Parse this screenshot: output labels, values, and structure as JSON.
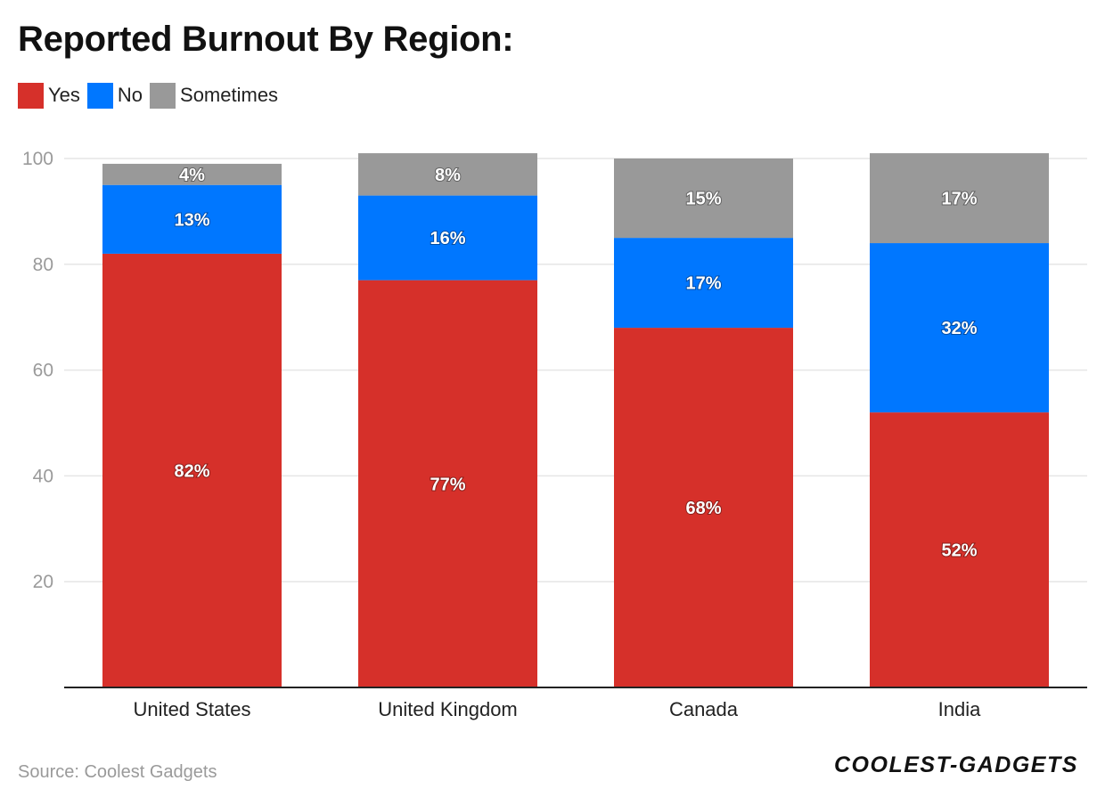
{
  "page": {
    "source": "Source: Coolest Gadgets",
    "brand": "COOLEST-GADGETS"
  },
  "colors": {
    "yes": "#d6302a",
    "no": "#0077ff",
    "sometimes": "#999999",
    "grid": "#e6e6e6",
    "axis": "#222222"
  },
  "chart_data": {
    "type": "bar",
    "stacked": true,
    "title": "Reported Burnout By Region:",
    "categories": [
      "United States",
      "United Kingdom",
      "Canada",
      "India"
    ],
    "series": [
      {
        "name": "Yes",
        "values": [
          82,
          77,
          68,
          52
        ],
        "labels": [
          "82%",
          "77%",
          "68%",
          "52%"
        ]
      },
      {
        "name": "No",
        "values": [
          13,
          16,
          17,
          32
        ],
        "labels": [
          "13%",
          "16%",
          "17%",
          "32%"
        ]
      },
      {
        "name": "Sometimes",
        "values": [
          4,
          8,
          15,
          17
        ],
        "labels": [
          "4%",
          "8%",
          "15%",
          "17%"
        ]
      }
    ],
    "yticks": [
      "20",
      "40",
      "60",
      "80",
      "100"
    ],
    "ylim": [
      0,
      100
    ],
    "grid": true,
    "legend": "top-left"
  }
}
